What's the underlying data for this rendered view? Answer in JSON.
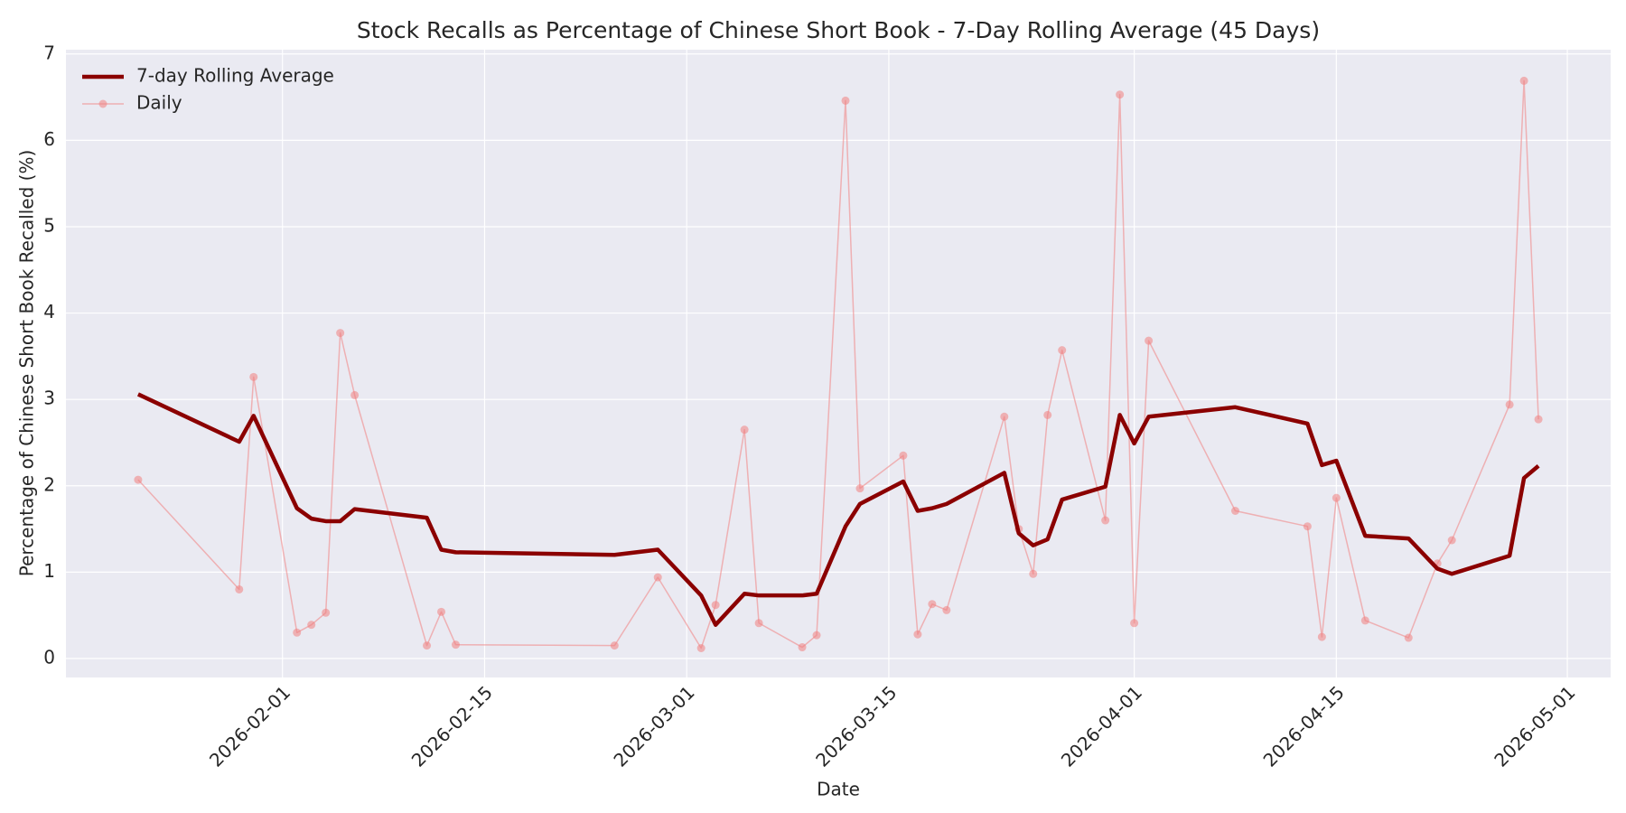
{
  "chart_data": {
    "type": "line",
    "title": "Stock Recalls as Percentage of Chinese Short Book - 7-Day Rolling Average (45 Days)",
    "xlabel": "Date",
    "ylabel": "Percentage of Chinese Short Book Recalled (%)",
    "x": [
      "2026-01-22",
      "2026-01-29",
      "2026-01-30",
      "2026-02-02",
      "2026-02-03",
      "2026-02-04",
      "2026-02-05",
      "2026-02-06",
      "2026-02-11",
      "2026-02-12",
      "2026-02-13",
      "2026-02-24",
      "2026-02-27",
      "2026-03-02",
      "2026-03-03",
      "2026-03-05",
      "2026-03-06",
      "2026-03-09",
      "2026-03-10",
      "2026-03-12",
      "2026-03-13",
      "2026-03-16",
      "2026-03-17",
      "2026-03-18",
      "2026-03-19",
      "2026-03-23",
      "2026-03-24",
      "2026-03-25",
      "2026-03-26",
      "2026-03-27",
      "2026-03-30",
      "2026-03-31",
      "2026-04-01",
      "2026-04-02",
      "2026-04-08",
      "2026-04-13",
      "2026-04-14",
      "2026-04-15",
      "2026-04-17",
      "2026-04-20",
      "2026-04-22",
      "2026-04-23",
      "2026-04-27",
      "2026-04-28",
      "2026-04-29"
    ],
    "series": [
      {
        "name": "7-day Rolling Average",
        "color": "#8b0000",
        "width": 4.5,
        "values": [
          3.06,
          2.51,
          2.81,
          1.74,
          1.62,
          1.59,
          1.59,
          1.73,
          1.63,
          1.26,
          1.23,
          1.2,
          1.26,
          0.73,
          0.39,
          0.75,
          0.73,
          0.73,
          0.75,
          1.53,
          1.79,
          2.05,
          1.71,
          1.74,
          1.79,
          2.15,
          1.45,
          1.31,
          1.38,
          1.84,
          1.99,
          2.82,
          2.49,
          2.8,
          2.91,
          2.72,
          2.24,
          2.29,
          1.42,
          1.39,
          1.04,
          0.98,
          1.19,
          2.09,
          2.23
        ]
      },
      {
        "name": "Daily",
        "color": "#f08080",
        "width": 1.5,
        "marker": "o",
        "values": [
          2.07,
          0.8,
          3.26,
          0.3,
          0.39,
          0.53,
          3.77,
          3.05,
          0.15,
          0.54,
          0.16,
          0.15,
          0.94,
          0.12,
          0.62,
          2.65,
          0.41,
          0.13,
          0.27,
          6.46,
          1.97,
          2.35,
          0.28,
          0.63,
          0.56,
          2.8,
          1.5,
          0.98,
          2.82,
          3.57,
          1.6,
          6.53,
          0.41,
          3.68,
          1.71,
          1.53,
          0.25,
          1.86,
          0.44,
          0.24,
          1.1,
          1.37,
          2.94,
          6.69,
          2.77
        ]
      }
    ],
    "xlim": [
      "2026-01-17",
      "2026-05-04"
    ],
    "xticks": [
      "2026-02-01",
      "2026-02-15",
      "2026-03-01",
      "2026-03-15",
      "2026-04-01",
      "2026-04-15",
      "2026-05-01"
    ],
    "ylim": [
      -0.22,
      7.05
    ],
    "yticks": [
      0,
      1,
      2,
      3,
      4,
      5,
      6,
      7
    ],
    "grid": true,
    "legend": "upper-left"
  }
}
